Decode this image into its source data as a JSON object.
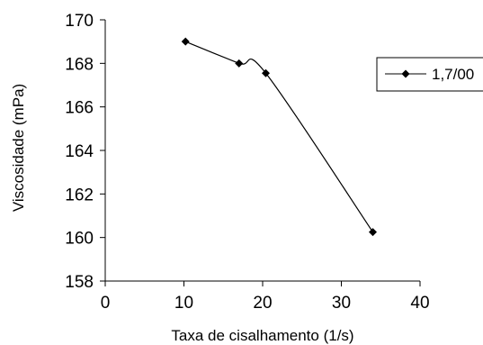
{
  "chart_data": {
    "type": "line",
    "title": "",
    "xlabel": "Taxa de cisalhamento (1/s)",
    "ylabel": "Viscosidade (mPa)",
    "xlim": [
      0,
      40
    ],
    "ylim": [
      158,
      170
    ],
    "xticks": [
      0,
      10,
      20,
      30,
      40
    ],
    "yticks": [
      158,
      160,
      162,
      164,
      166,
      168,
      170
    ],
    "grid": false,
    "legend_position": "right",
    "series": [
      {
        "name": "1,7/00",
        "marker": "diamond",
        "color": "#000000",
        "x": [
          10.2,
          17.0,
          20.4,
          34.0
        ],
        "y": [
          169.0,
          168.0,
          167.55,
          160.25
        ]
      }
    ]
  }
}
